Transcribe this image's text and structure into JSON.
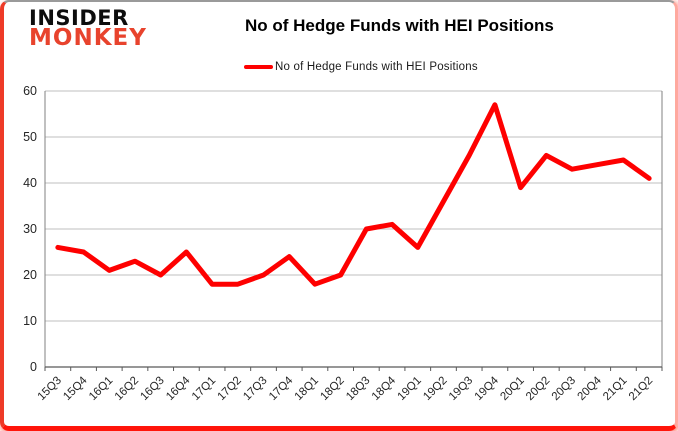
{
  "logo": {
    "line1": "INSIDER",
    "line2": "MONKEY"
  },
  "header": {
    "title": "No of Hedge Funds with HEI Positions"
  },
  "legend": {
    "label": "No of Hedge Funds with HEI Positions",
    "color": "#fe0000"
  },
  "colors": {
    "series": "#fe0000",
    "grid": "#bfbfbf",
    "axis": "#808080",
    "tick_text": "#262626"
  },
  "chart_data": {
    "type": "line",
    "title": "No of Hedge Funds with HEI Positions",
    "categories": [
      "15Q3",
      "15Q4",
      "16Q1",
      "16Q2",
      "16Q3",
      "16Q4",
      "17Q1",
      "17Q2",
      "17Q3",
      "17Q4",
      "18Q1",
      "18Q2",
      "18Q3",
      "18Q4",
      "19Q1",
      "19Q2",
      "19Q3",
      "19Q4",
      "20Q1",
      "20Q2",
      "20Q3",
      "20Q4",
      "21Q1",
      "21Q2"
    ],
    "series": [
      {
        "name": "No of Hedge Funds with HEI Positions",
        "color": "#fe0000",
        "values": [
          26,
          25,
          21,
          23,
          20,
          25,
          18,
          18,
          20,
          24,
          18,
          20,
          30,
          31,
          26,
          36,
          46,
          57,
          39,
          46,
          43,
          44,
          45,
          41
        ]
      }
    ],
    "xlabel": "",
    "ylabel": "",
    "ylim": [
      0,
      60
    ],
    "ytick_step": 10,
    "grid": true,
    "legend_position": "top-center"
  }
}
